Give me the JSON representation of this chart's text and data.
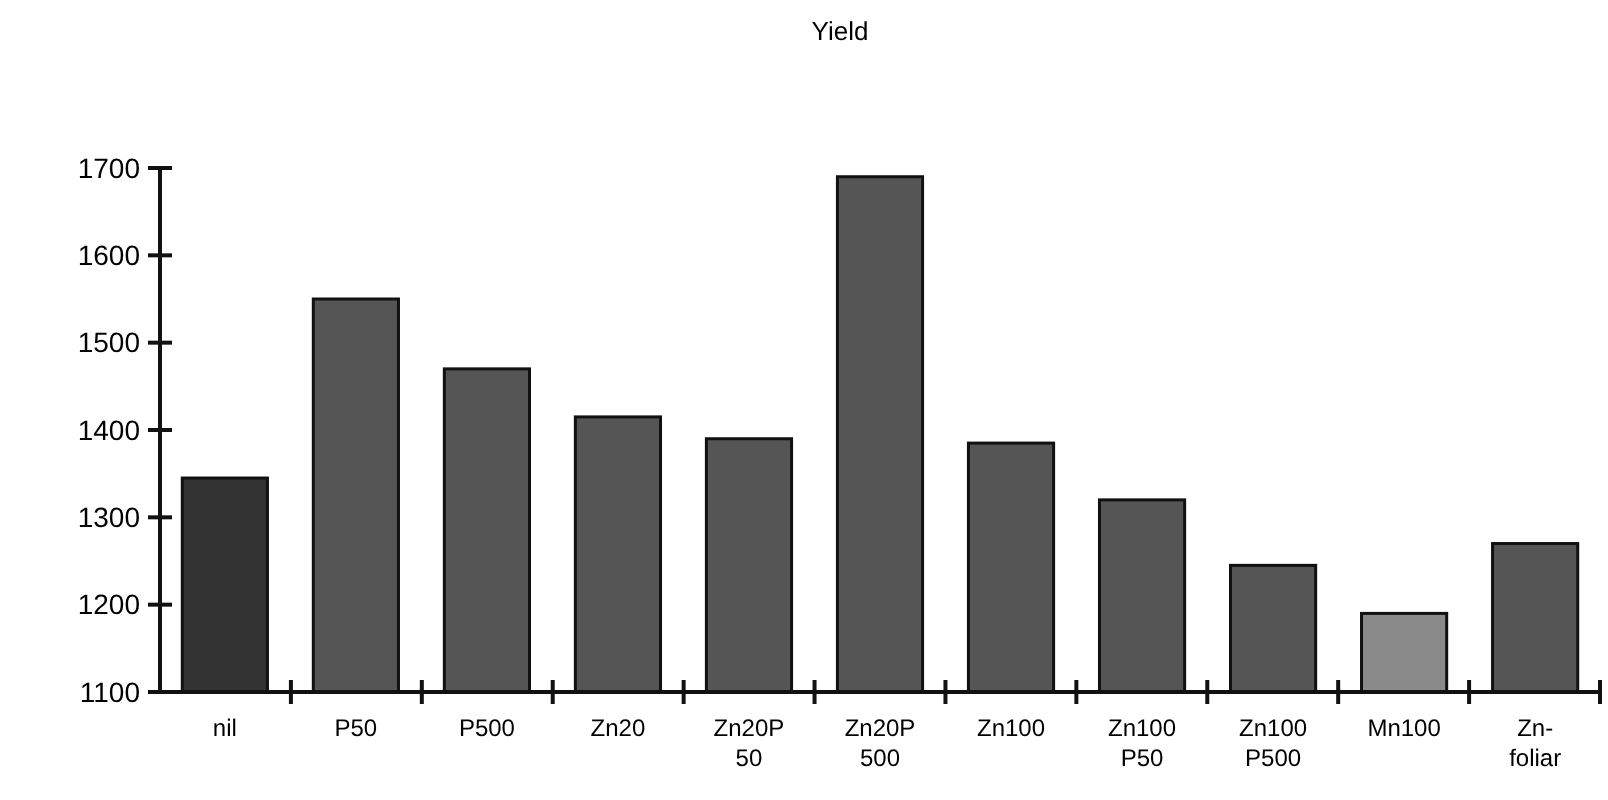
{
  "chart_data": {
    "type": "bar",
    "title": "Yield",
    "categories": [
      "nil",
      "P50",
      "P500",
      "Zn20",
      "Zn20P\n50",
      "Zn20P\n500",
      "Zn100",
      "Zn100\nP50",
      "Zn100\nP500",
      "Mn100",
      "Zn-\nfoliar"
    ],
    "values": [
      1345,
      1550,
      1470,
      1415,
      1390,
      1690,
      1385,
      1320,
      1245,
      1190,
      1270
    ],
    "colors": [
      "#333333",
      "#555555",
      "#555555",
      "#555555",
      "#555555",
      "#555555",
      "#555555",
      "#555555",
      "#555555",
      "#8a8a8a",
      "#555555"
    ],
    "ylim": [
      1100,
      1700
    ],
    "yticks": [
      1100,
      1200,
      1300,
      1400,
      1500,
      1600,
      1700
    ],
    "grid": false
  }
}
